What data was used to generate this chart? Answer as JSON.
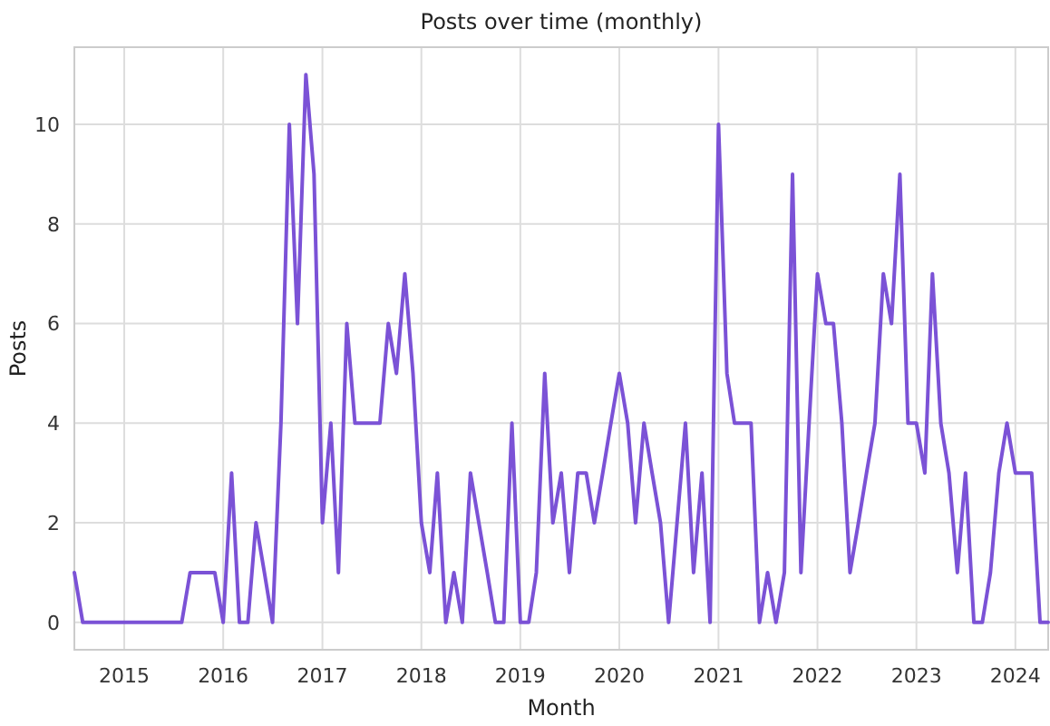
{
  "chart_data": {
    "type": "line",
    "title": "Posts over time (monthly)",
    "xlabel": "Month",
    "ylabel": "Posts",
    "x": [
      "2014-07",
      "2014-08",
      "2014-09",
      "2014-10",
      "2014-11",
      "2014-12",
      "2015-01",
      "2015-02",
      "2015-03",
      "2015-04",
      "2015-05",
      "2015-06",
      "2015-07",
      "2015-08",
      "2015-09",
      "2015-10",
      "2015-11",
      "2015-12",
      "2016-01",
      "2016-02",
      "2016-03",
      "2016-04",
      "2016-05",
      "2016-06",
      "2016-07",
      "2016-08",
      "2016-09",
      "2016-10",
      "2016-11",
      "2016-12",
      "2017-01",
      "2017-02",
      "2017-03",
      "2017-04",
      "2017-05",
      "2017-06",
      "2017-07",
      "2017-08",
      "2017-09",
      "2017-10",
      "2017-11",
      "2017-12",
      "2018-01",
      "2018-02",
      "2018-03",
      "2018-04",
      "2018-05",
      "2018-06",
      "2018-07",
      "2018-08",
      "2018-09",
      "2018-10",
      "2018-11",
      "2018-12",
      "2019-01",
      "2019-02",
      "2019-03",
      "2019-04",
      "2019-05",
      "2019-06",
      "2019-07",
      "2019-08",
      "2019-09",
      "2019-10",
      "2019-11",
      "2019-12",
      "2020-01",
      "2020-02",
      "2020-03",
      "2020-04",
      "2020-05",
      "2020-06",
      "2020-07",
      "2020-08",
      "2020-09",
      "2020-10",
      "2020-11",
      "2020-12",
      "2021-01",
      "2021-02",
      "2021-03",
      "2021-04",
      "2021-05",
      "2021-06",
      "2021-07",
      "2021-08",
      "2021-09",
      "2021-10",
      "2021-11",
      "2021-12",
      "2022-01",
      "2022-02",
      "2022-03",
      "2022-04",
      "2022-05",
      "2022-06",
      "2022-07",
      "2022-08",
      "2022-09",
      "2022-10",
      "2022-11",
      "2022-12",
      "2023-01",
      "2023-02",
      "2023-03",
      "2023-04",
      "2023-05",
      "2023-06",
      "2023-07",
      "2023-08",
      "2023-09",
      "2023-10",
      "2023-11",
      "2023-12",
      "2024-01",
      "2024-02",
      "2024-03",
      "2024-04",
      "2024-05"
    ],
    "series": [
      {
        "color": "#7b52d6",
        "values": [
          1,
          0,
          0,
          0,
          0,
          0,
          0,
          0,
          0,
          0,
          0,
          0,
          0,
          0,
          1,
          1,
          1,
          1,
          0,
          3,
          0,
          0,
          2,
          1,
          0,
          4,
          10,
          6,
          11,
          9,
          2,
          4,
          1,
          6,
          4,
          4,
          4,
          4,
          6,
          5,
          7,
          5,
          2,
          1,
          3,
          0,
          1,
          0,
          3,
          2,
          1,
          0,
          0,
          4,
          0,
          0,
          1,
          5,
          2,
          3,
          1,
          3,
          3,
          2,
          3,
          4,
          5,
          4,
          2,
          4,
          3,
          2,
          0,
          2,
          4,
          1,
          3,
          0,
          10,
          5,
          4,
          4,
          4,
          0,
          1,
          0,
          1,
          9,
          1,
          4,
          7,
          6,
          6,
          4,
          1,
          2,
          3,
          4,
          7,
          6,
          9,
          4,
          4,
          3,
          7,
          4,
          3,
          1,
          3,
          0,
          0,
          1,
          3,
          4,
          3,
          3,
          3,
          0,
          0
        ]
      }
    ],
    "xlim": [
      "2014-07",
      "2024-05"
    ],
    "xticks": [
      {
        "value": "2015",
        "label": "2015"
      },
      {
        "value": "2016",
        "label": "2016"
      },
      {
        "value": "2017",
        "label": "2017"
      },
      {
        "value": "2018",
        "label": "2018"
      },
      {
        "value": "2019",
        "label": "2019"
      },
      {
        "value": "2020",
        "label": "2020"
      },
      {
        "value": "2021",
        "label": "2021"
      },
      {
        "value": "2022",
        "label": "2022"
      },
      {
        "value": "2023",
        "label": "2023"
      },
      {
        "value": "2024",
        "label": "2024"
      }
    ],
    "ylim": [
      -0.55,
      11.55
    ],
    "yticks": [
      0,
      2,
      4,
      6,
      8,
      10
    ],
    "grid": true,
    "marker": "none",
    "line_style": "solid"
  }
}
